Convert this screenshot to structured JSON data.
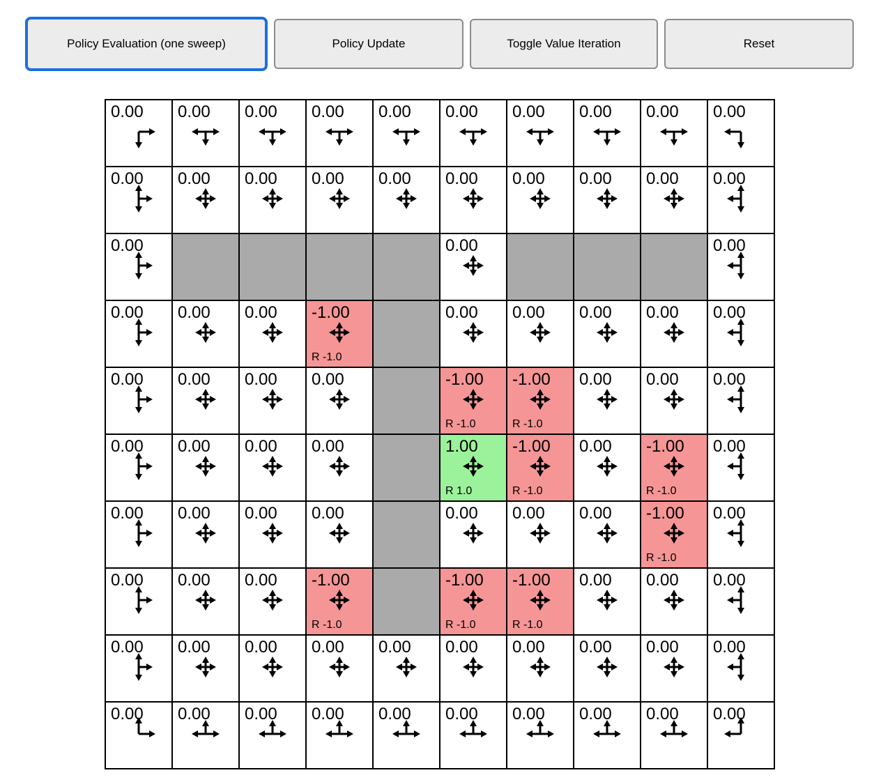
{
  "toolbar": {
    "buttons": [
      {
        "label": "Policy Evaluation (one sweep)",
        "focused": true
      },
      {
        "label": "Policy Update",
        "focused": false
      },
      {
        "label": "Toggle Value Iteration",
        "focused": false
      },
      {
        "label": "Reset",
        "focused": false
      }
    ]
  },
  "colors": {
    "wall": "#aaaaaa",
    "negative_cell": "#f59595",
    "positive_cell": "#9bf29b",
    "cell_border": "#000000",
    "focus_ring": "#1a6fe0",
    "button_bg": "#ececec",
    "button_border": "#8c8c8c"
  },
  "grid": {
    "rows": 10,
    "cols": 10,
    "cells": [
      [
        {
          "value": "0.00",
          "dirs": "rd"
        },
        {
          "value": "0.00",
          "dirs": "lrd"
        },
        {
          "value": "0.00",
          "dirs": "lrd"
        },
        {
          "value": "0.00",
          "dirs": "lrd"
        },
        {
          "value": "0.00",
          "dirs": "lrd"
        },
        {
          "value": "0.00",
          "dirs": "lrd"
        },
        {
          "value": "0.00",
          "dirs": "lrd"
        },
        {
          "value": "0.00",
          "dirs": "lrd"
        },
        {
          "value": "0.00",
          "dirs": "lrd"
        },
        {
          "value": "0.00",
          "dirs": "ld"
        }
      ],
      [
        {
          "value": "0.00",
          "dirs": "udr"
        },
        {
          "value": "0.00",
          "dirs": "udlr"
        },
        {
          "value": "0.00",
          "dirs": "udlr"
        },
        {
          "value": "0.00",
          "dirs": "udlr"
        },
        {
          "value": "0.00",
          "dirs": "udlr"
        },
        {
          "value": "0.00",
          "dirs": "udlr"
        },
        {
          "value": "0.00",
          "dirs": "udlr"
        },
        {
          "value": "0.00",
          "dirs": "udlr"
        },
        {
          "value": "0.00",
          "dirs": "udlr"
        },
        {
          "value": "0.00",
          "dirs": "udl"
        }
      ],
      [
        {
          "value": "0.00",
          "dirs": "udr"
        },
        {
          "wall": true
        },
        {
          "wall": true
        },
        {
          "wall": true
        },
        {
          "wall": true
        },
        {
          "value": "0.00",
          "dirs": "udlr"
        },
        {
          "wall": true
        },
        {
          "wall": true
        },
        {
          "wall": true
        },
        {
          "value": "0.00",
          "dirs": "udl"
        }
      ],
      [
        {
          "value": "0.00",
          "dirs": "udr"
        },
        {
          "value": "0.00",
          "dirs": "udlr"
        },
        {
          "value": "0.00",
          "dirs": "udlr"
        },
        {
          "value": "-1.00",
          "dirs": "udlr",
          "tint": "negative",
          "reward": "R -1.0"
        },
        {
          "wall": true
        },
        {
          "value": "0.00",
          "dirs": "udlr"
        },
        {
          "value": "0.00",
          "dirs": "udlr"
        },
        {
          "value": "0.00",
          "dirs": "udlr"
        },
        {
          "value": "0.00",
          "dirs": "udlr"
        },
        {
          "value": "0.00",
          "dirs": "udl"
        }
      ],
      [
        {
          "value": "0.00",
          "dirs": "udr"
        },
        {
          "value": "0.00",
          "dirs": "udlr"
        },
        {
          "value": "0.00",
          "dirs": "udlr"
        },
        {
          "value": "0.00",
          "dirs": "udlr"
        },
        {
          "wall": true
        },
        {
          "value": "-1.00",
          "dirs": "udlr",
          "tint": "negative",
          "reward": "R -1.0"
        },
        {
          "value": "-1.00",
          "dirs": "udlr",
          "tint": "negative",
          "reward": "R -1.0"
        },
        {
          "value": "0.00",
          "dirs": "udlr"
        },
        {
          "value": "0.00",
          "dirs": "udlr"
        },
        {
          "value": "0.00",
          "dirs": "udl"
        }
      ],
      [
        {
          "value": "0.00",
          "dirs": "udr"
        },
        {
          "value": "0.00",
          "dirs": "udlr"
        },
        {
          "value": "0.00",
          "dirs": "udlr"
        },
        {
          "value": "0.00",
          "dirs": "udlr"
        },
        {
          "wall": true
        },
        {
          "value": "1.00",
          "dirs": "udlr",
          "tint": "positive",
          "reward": "R 1.0"
        },
        {
          "value": "-1.00",
          "dirs": "udlr",
          "tint": "negative",
          "reward": "R -1.0"
        },
        {
          "value": "0.00",
          "dirs": "udlr"
        },
        {
          "value": "-1.00",
          "dirs": "udlr",
          "tint": "negative",
          "reward": "R -1.0"
        },
        {
          "value": "0.00",
          "dirs": "udl"
        }
      ],
      [
        {
          "value": "0.00",
          "dirs": "udr"
        },
        {
          "value": "0.00",
          "dirs": "udlr"
        },
        {
          "value": "0.00",
          "dirs": "udlr"
        },
        {
          "value": "0.00",
          "dirs": "udlr"
        },
        {
          "wall": true
        },
        {
          "value": "0.00",
          "dirs": "udlr"
        },
        {
          "value": "0.00",
          "dirs": "udlr"
        },
        {
          "value": "0.00",
          "dirs": "udlr"
        },
        {
          "value": "-1.00",
          "dirs": "udlr",
          "tint": "negative",
          "reward": "R -1.0"
        },
        {
          "value": "0.00",
          "dirs": "udl"
        }
      ],
      [
        {
          "value": "0.00",
          "dirs": "udr"
        },
        {
          "value": "0.00",
          "dirs": "udlr"
        },
        {
          "value": "0.00",
          "dirs": "udlr"
        },
        {
          "value": "-1.00",
          "dirs": "udlr",
          "tint": "negative",
          "reward": "R -1.0"
        },
        {
          "wall": true
        },
        {
          "value": "-1.00",
          "dirs": "udlr",
          "tint": "negative",
          "reward": "R -1.0"
        },
        {
          "value": "-1.00",
          "dirs": "udlr",
          "tint": "negative",
          "reward": "R -1.0"
        },
        {
          "value": "0.00",
          "dirs": "udlr"
        },
        {
          "value": "0.00",
          "dirs": "udlr"
        },
        {
          "value": "0.00",
          "dirs": "udl"
        }
      ],
      [
        {
          "value": "0.00",
          "dirs": "udr"
        },
        {
          "value": "0.00",
          "dirs": "udlr"
        },
        {
          "value": "0.00",
          "dirs": "udlr"
        },
        {
          "value": "0.00",
          "dirs": "udlr"
        },
        {
          "value": "0.00",
          "dirs": "udlr"
        },
        {
          "value": "0.00",
          "dirs": "udlr"
        },
        {
          "value": "0.00",
          "dirs": "udlr"
        },
        {
          "value": "0.00",
          "dirs": "udlr"
        },
        {
          "value": "0.00",
          "dirs": "udlr"
        },
        {
          "value": "0.00",
          "dirs": "udl"
        }
      ],
      [
        {
          "value": "0.00",
          "dirs": "ur"
        },
        {
          "value": "0.00",
          "dirs": "lru"
        },
        {
          "value": "0.00",
          "dirs": "lru"
        },
        {
          "value": "0.00",
          "dirs": "lru"
        },
        {
          "value": "0.00",
          "dirs": "lru"
        },
        {
          "value": "0.00",
          "dirs": "lru"
        },
        {
          "value": "0.00",
          "dirs": "lru"
        },
        {
          "value": "0.00",
          "dirs": "lru"
        },
        {
          "value": "0.00",
          "dirs": "lru"
        },
        {
          "value": "0.00",
          "dirs": "ul"
        }
      ]
    ]
  }
}
